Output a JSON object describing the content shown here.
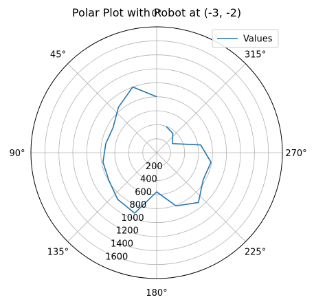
{
  "chart_data": {
    "type": "polar-line",
    "title": "Polar Plot with Robot at (-3, -2)",
    "theta_zero_location": "top",
    "theta_direction": "counterclockwise",
    "theta_tick_labels": [
      "0°",
      "45°",
      "90°",
      "135°",
      "180°",
      "225°",
      "270°",
      "315°"
    ],
    "theta_ticks_deg": [
      0,
      45,
      90,
      135,
      180,
      225,
      270,
      315
    ],
    "r_ticks": [
      200,
      400,
      600,
      800,
      1000,
      1200,
      1400,
      1600
    ],
    "r_tick_labels": [
      "200",
      "400",
      "600",
      "800",
      "1000",
      "1200",
      "1400",
      "1600"
    ],
    "r_label_angle_deg": 157.5,
    "rlim": [
      0,
      1800
    ],
    "grid": true,
    "legend": {
      "entries": [
        "Values"
      ],
      "placement": "top-right"
    },
    "series": [
      {
        "name": "Values",
        "color": "#1f77b4",
        "theta_deg": [
          0,
          20,
          40,
          60,
          80,
          100,
          120,
          140,
          160,
          180,
          200,
          220,
          240,
          260,
          280,
          300,
          320,
          340
        ],
        "r": [
          800,
          1000,
          850,
          720,
          740,
          780,
          790,
          870,
          920,
          560,
          810,
          930,
          770,
          790,
          640,
          260,
          360,
          400
        ]
      }
    ]
  }
}
